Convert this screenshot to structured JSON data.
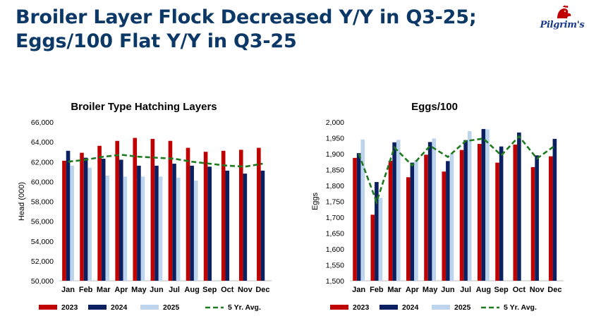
{
  "page": {
    "title_line1": "Broiler Layer Flock Decreased Y/Y in Q3-25;",
    "title_line2": "Eggs/100 Flat Y/Y in Q3-25",
    "logo_text": "Pilgrim's"
  },
  "colors": {
    "series_2023": "#c00000",
    "series_2024": "#0b2060",
    "series_2025": "#bcd4ee",
    "avg": "#1e7a1e",
    "title": "#0b3866"
  },
  "chart_data": [
    {
      "type": "bar",
      "title": "Broiler Type Hatching Layers",
      "xlabel": "",
      "ylabel": "Head (000)",
      "ylim": [
        50000,
        66000
      ],
      "yticks": [
        50000,
        52000,
        54000,
        56000,
        58000,
        60000,
        62000,
        64000,
        66000
      ],
      "ytick_labels": [
        "50,000",
        "52,000",
        "54,000",
        "56,000",
        "58,000",
        "60,000",
        "62,000",
        "64,000",
        "66,000"
      ],
      "categories": [
        "Jan",
        "Feb",
        "Mar",
        "Apr",
        "May",
        "Jun",
        "Jul",
        "Aug",
        "Sep",
        "Oct",
        "Nov",
        "Dec"
      ],
      "series": [
        {
          "name": "2023",
          "values": [
            62100,
            62900,
            63600,
            64100,
            64400,
            64300,
            64100,
            63400,
            63000,
            63100,
            63200,
            63400
          ]
        },
        {
          "name": "2024",
          "values": [
            63100,
            62400,
            62300,
            62200,
            61600,
            61600,
            61800,
            61600,
            61500,
            61100,
            60800,
            61100
          ]
        },
        {
          "name": "2025",
          "values": [
            61600,
            61400,
            60600,
            60500,
            60500,
            60500,
            60400,
            60100,
            null,
            null,
            null,
            null
          ]
        }
      ],
      "line": {
        "name": "5 Yr. Avg.",
        "values": [
          62000,
          62200,
          62500,
          62700,
          62500,
          62400,
          62300,
          62000,
          61800,
          61600,
          61500,
          61800
        ]
      }
    },
    {
      "type": "bar",
      "title": "Eggs/100",
      "xlabel": "",
      "ylabel": "Eggs",
      "ylim": [
        1500,
        2000
      ],
      "yticks": [
        1500,
        1550,
        1600,
        1650,
        1700,
        1750,
        1800,
        1850,
        1900,
        1950,
        2000
      ],
      "ytick_labels": [
        "1,500",
        "1,550",
        "1,600",
        "1,650",
        "1,700",
        "1,750",
        "1,800",
        "1,850",
        "1,900",
        "1,950",
        "2,000"
      ],
      "categories": [
        "Jan",
        "Feb",
        "Mar",
        "Apr",
        "May",
        "Jun",
        "Jul",
        "Aug",
        "Sep",
        "Oct",
        "Nov",
        "Dec"
      ],
      "series": [
        {
          "name": "2023",
          "values": [
            1887,
            1708,
            1878,
            1826,
            1897,
            1844,
            1912,
            1931,
            1872,
            1929,
            1858,
            1892
          ]
        },
        {
          "name": "2024",
          "values": [
            1902,
            1811,
            1936,
            1872,
            1937,
            1877,
            1943,
            1978,
            1923,
            1967,
            1895,
            1947
          ]
        },
        {
          "name": "2025",
          "values": [
            1945,
            1761,
            1944,
            1880,
            1948,
            1900,
            1971,
            1977,
            null,
            null,
            null,
            null
          ]
        }
      ],
      "line": {
        "name": "5 Yr. Avg.",
        "values": [
          1900,
          1748,
          1920,
          1863,
          1925,
          1890,
          1940,
          1948,
          1895,
          1955,
          1885,
          1925
        ]
      }
    }
  ]
}
